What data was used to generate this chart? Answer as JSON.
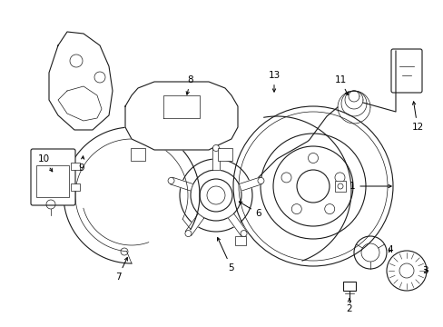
{
  "background_color": "#ffffff",
  "figsize": [
    4.89,
    3.6
  ],
  "dpi": 100,
  "image_data": ""
}
